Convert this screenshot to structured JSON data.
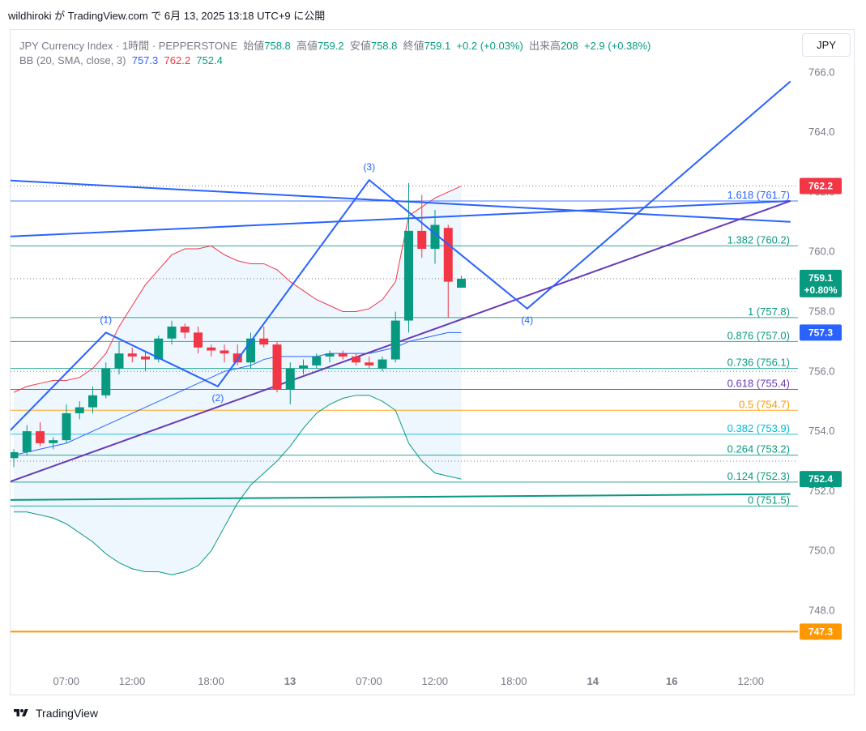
{
  "header": {
    "text": "wildhiroki が TradingView.com で 6月 13, 2025 13:18 UTC+9 に公開"
  },
  "legend": {
    "symbol": "JPY Currency Index · 1時間 · PEPPERSTONE",
    "open_label": "始値",
    "open": "758.8",
    "high_label": "高値",
    "high": "759.2",
    "low_label": "安値",
    "low": "758.8",
    "close_label": "終値",
    "close": "759.1",
    "change": "+0.2 (+0.03%)",
    "volume_label": "出来高",
    "volume": "208",
    "volume_change": "+2.9 (+0.38%)",
    "bb_label": "BB (20, SMA, close, 3)",
    "bb_basis": "757.3",
    "bb_upper": "762.2",
    "bb_lower": "752.4"
  },
  "symbol_button": {
    "label": "JPY"
  },
  "footer": {
    "brand": "TradingView"
  },
  "colors": {
    "up": "#089981",
    "down": "#f23645",
    "wave": "#2962ff",
    "trend_purple": "#673ab7",
    "level_orange": "#ff9800",
    "bb_fill": "#e3f2fd"
  },
  "chart_data": {
    "type": "candlestick",
    "title": "JPY Currency Index · 1時間 · PEPPERSTONE",
    "ylim": [
      745.0,
      767.0
    ],
    "y_ticks": [
      "766.0",
      "764.0",
      "762.0",
      "760.0",
      "758.0",
      "756.0",
      "754.0",
      "752.0",
      "750.0",
      "748.0"
    ],
    "x_ticks": [
      {
        "label": "07:00",
        "i": 3
      },
      {
        "label": "12:00",
        "i": 8
      },
      {
        "label": "18:00",
        "i": 14
      },
      {
        "label": "13",
        "i": 20
      },
      {
        "label": "07:00",
        "i": 26
      },
      {
        "label": "12:00",
        "i": 31
      },
      {
        "label": "18:00",
        "i": 37
      },
      {
        "label": "14",
        "i": 43
      },
      {
        "label": "16",
        "i": 49
      },
      {
        "label": "12:00",
        "i": 55
      }
    ],
    "candles": [
      {
        "o": 753.1,
        "h": 753.4,
        "l": 752.8,
        "c": 753.3
      },
      {
        "o": 753.3,
        "h": 754.2,
        "l": 753.2,
        "c": 754.0
      },
      {
        "o": 754.0,
        "h": 754.3,
        "l": 753.5,
        "c": 753.6
      },
      {
        "o": 753.6,
        "h": 753.8,
        "l": 753.4,
        "c": 753.7
      },
      {
        "o": 753.7,
        "h": 754.9,
        "l": 753.6,
        "c": 754.6
      },
      {
        "o": 754.6,
        "h": 755.0,
        "l": 754.4,
        "c": 754.8
      },
      {
        "o": 754.8,
        "h": 755.5,
        "l": 754.6,
        "c": 755.2
      },
      {
        "o": 755.2,
        "h": 756.3,
        "l": 755.1,
        "c": 756.1
      },
      {
        "o": 756.1,
        "h": 757.0,
        "l": 755.9,
        "c": 756.6
      },
      {
        "o": 756.6,
        "h": 756.8,
        "l": 756.3,
        "c": 756.5
      },
      {
        "o": 756.5,
        "h": 756.7,
        "l": 756.0,
        "c": 756.4
      },
      {
        "o": 756.4,
        "h": 757.2,
        "l": 756.3,
        "c": 757.1
      },
      {
        "o": 757.1,
        "h": 757.7,
        "l": 756.9,
        "c": 757.5
      },
      {
        "o": 757.5,
        "h": 757.6,
        "l": 757.1,
        "c": 757.3
      },
      {
        "o": 757.3,
        "h": 757.5,
        "l": 756.6,
        "c": 756.8
      },
      {
        "o": 756.8,
        "h": 756.9,
        "l": 756.5,
        "c": 756.7
      },
      {
        "o": 756.7,
        "h": 756.9,
        "l": 756.3,
        "c": 756.6
      },
      {
        "o": 756.6,
        "h": 756.9,
        "l": 756.2,
        "c": 756.3
      },
      {
        "o": 756.3,
        "h": 757.3,
        "l": 756.1,
        "c": 757.1
      },
      {
        "o": 757.1,
        "h": 757.5,
        "l": 756.8,
        "c": 756.9
      },
      {
        "o": 756.9,
        "h": 757.0,
        "l": 755.3,
        "c": 755.4
      },
      {
        "o": 755.4,
        "h": 756.3,
        "l": 754.9,
        "c": 756.1
      },
      {
        "o": 756.1,
        "h": 756.4,
        "l": 755.9,
        "c": 756.2
      },
      {
        "o": 756.2,
        "h": 756.6,
        "l": 756.1,
        "c": 756.5
      },
      {
        "o": 756.5,
        "h": 756.7,
        "l": 756.3,
        "c": 756.6
      },
      {
        "o": 756.6,
        "h": 756.7,
        "l": 756.4,
        "c": 756.5
      },
      {
        "o": 756.5,
        "h": 756.6,
        "l": 756.2,
        "c": 756.3
      },
      {
        "o": 756.3,
        "h": 756.5,
        "l": 756.1,
        "c": 756.2
      },
      {
        "o": 756.1,
        "h": 756.5,
        "l": 756.0,
        "c": 756.4
      },
      {
        "o": 756.4,
        "h": 758.0,
        "l": 756.3,
        "c": 757.7
      },
      {
        "o": 757.7,
        "h": 762.3,
        "l": 757.3,
        "c": 760.7
      },
      {
        "o": 760.7,
        "h": 761.9,
        "l": 759.8,
        "c": 760.1
      },
      {
        "o": 760.1,
        "h": 761.4,
        "l": 759.6,
        "c": 760.9
      },
      {
        "o": 760.8,
        "h": 760.9,
        "l": 757.8,
        "c": 759.0
      },
      {
        "o": 758.8,
        "h": 759.2,
        "l": 758.8,
        "c": 759.1
      }
    ],
    "bb_upper": [
      755.3,
      755.5,
      755.6,
      755.7,
      755.7,
      755.8,
      756.1,
      756.6,
      757.5,
      758.2,
      758.9,
      759.4,
      759.9,
      760.1,
      760.1,
      760.2,
      759.9,
      759.7,
      759.6,
      759.6,
      759.4,
      759.0,
      758.7,
      758.4,
      758.2,
      758.0,
      758.0,
      758.1,
      758.4,
      759.0,
      761.2,
      761.5,
      761.8,
      762.0,
      762.2
    ],
    "bb_basis": [
      753.2,
      753.3,
      753.4,
      753.5,
      753.6,
      753.8,
      754.0,
      754.2,
      754.4,
      754.6,
      754.8,
      755.0,
      755.2,
      755.4,
      755.6,
      755.8,
      756.0,
      756.1,
      756.2,
      756.4,
      756.5,
      756.5,
      756.5,
      756.5,
      756.6,
      756.6,
      756.6,
      756.6,
      756.7,
      756.8,
      757.0,
      757.1,
      757.2,
      757.3,
      757.3
    ],
    "bb_lower": [
      751.3,
      751.3,
      751.2,
      751.1,
      750.9,
      750.6,
      750.3,
      749.9,
      749.6,
      749.4,
      749.3,
      749.3,
      749.2,
      749.3,
      749.5,
      750.0,
      750.8,
      751.6,
      752.2,
      752.6,
      753.0,
      753.5,
      754.1,
      754.6,
      754.9,
      755.1,
      755.2,
      755.2,
      755.0,
      754.7,
      753.6,
      753.0,
      752.6,
      752.5,
      752.4
    ],
    "fib_levels": [
      {
        "ratio": "1.618",
        "price": 761.7,
        "label": "1.618 (761.7)",
        "color": "#2962ff"
      },
      {
        "ratio": "1.382",
        "price": 760.2,
        "label": "1.382 (760.2)",
        "color": "#089981"
      },
      {
        "ratio": "1",
        "price": 757.8,
        "label": "1 (757.8)",
        "color": "#089981"
      },
      {
        "ratio": "0.876",
        "price": 757.0,
        "label": "0.876 (757.0)",
        "color": "#089981"
      },
      {
        "ratio": "0.736",
        "price": 756.1,
        "label": "0.736 (756.1)",
        "color": "#089981"
      },
      {
        "ratio": "0.618",
        "price": 755.4,
        "label": "0.618 (755.4)",
        "color": "#673ab7"
      },
      {
        "ratio": "0.5",
        "price": 754.7,
        "label": "0.5 (754.7)",
        "color": "#ff9800"
      },
      {
        "ratio": "0.382",
        "price": 753.9,
        "label": "0.382 (753.9)",
        "color": "#00bcd4"
      },
      {
        "ratio": "0.264",
        "price": 753.2,
        "label": "0.264 (753.2)",
        "color": "#089981"
      },
      {
        "ratio": "0.124",
        "price": 752.3,
        "label": "0.124 (752.3)",
        "color": "#089981"
      },
      {
        "ratio": "0",
        "price": 751.5,
        "label": "0 (751.5)",
        "color": "#089981"
      }
    ],
    "extra_hlines": [
      {
        "price": 762.2,
        "style": "dotted",
        "color": "#787b86"
      },
      {
        "price": 759.1,
        "style": "dotted",
        "color": "#787b86"
      },
      {
        "price": 756.0,
        "style": "dotted",
        "color": "#787b86"
      },
      {
        "price": 753.0,
        "style": "dotted",
        "color": "#787b86"
      },
      {
        "price": 747.3,
        "style": "solid",
        "color": "#ff9800"
      }
    ],
    "trendlines": [
      {
        "i1": -1,
        "p1": 762.4,
        "i2": 59,
        "p2": 761.0,
        "color": "#2962ff",
        "width": 2
      },
      {
        "i1": -1,
        "p1": 760.5,
        "i2": 59,
        "p2": 761.7,
        "color": "#2962ff",
        "width": 2
      },
      {
        "i1": -1,
        "p1": 752.2,
        "i2": 59,
        "p2": 761.7,
        "color": "#673ab7",
        "width": 2
      },
      {
        "i1": -1,
        "p1": 751.7,
        "i2": 59,
        "p2": 751.9,
        "color": "#089981",
        "width": 2
      }
    ],
    "elliott_wave": {
      "points": [
        {
          "i": -1,
          "p": 753.7,
          "label": ""
        },
        {
          "i": 7,
          "p": 757.3,
          "label": "(1)"
        },
        {
          "i": 15.5,
          "p": 755.5,
          "label": "(2)"
        },
        {
          "i": 27,
          "p": 762.4,
          "label": "(3)"
        },
        {
          "i": 39,
          "p": 758.1,
          "label": "(4)"
        },
        {
          "i": 59,
          "p": 765.7,
          "label": ""
        }
      ],
      "color": "#2962ff"
    },
    "price_tags": [
      {
        "price": 762.2,
        "text": "762.2",
        "color": "#f23645"
      },
      {
        "price": 759.1,
        "text": "759.1",
        "sub": "+0.80%",
        "color": "#089981"
      },
      {
        "price": 757.3,
        "text": "757.3",
        "color": "#2962ff"
      },
      {
        "price": 752.4,
        "text": "752.4",
        "color": "#089981"
      },
      {
        "price": 747.3,
        "text": "747.3",
        "color": "#ff9800"
      }
    ]
  }
}
